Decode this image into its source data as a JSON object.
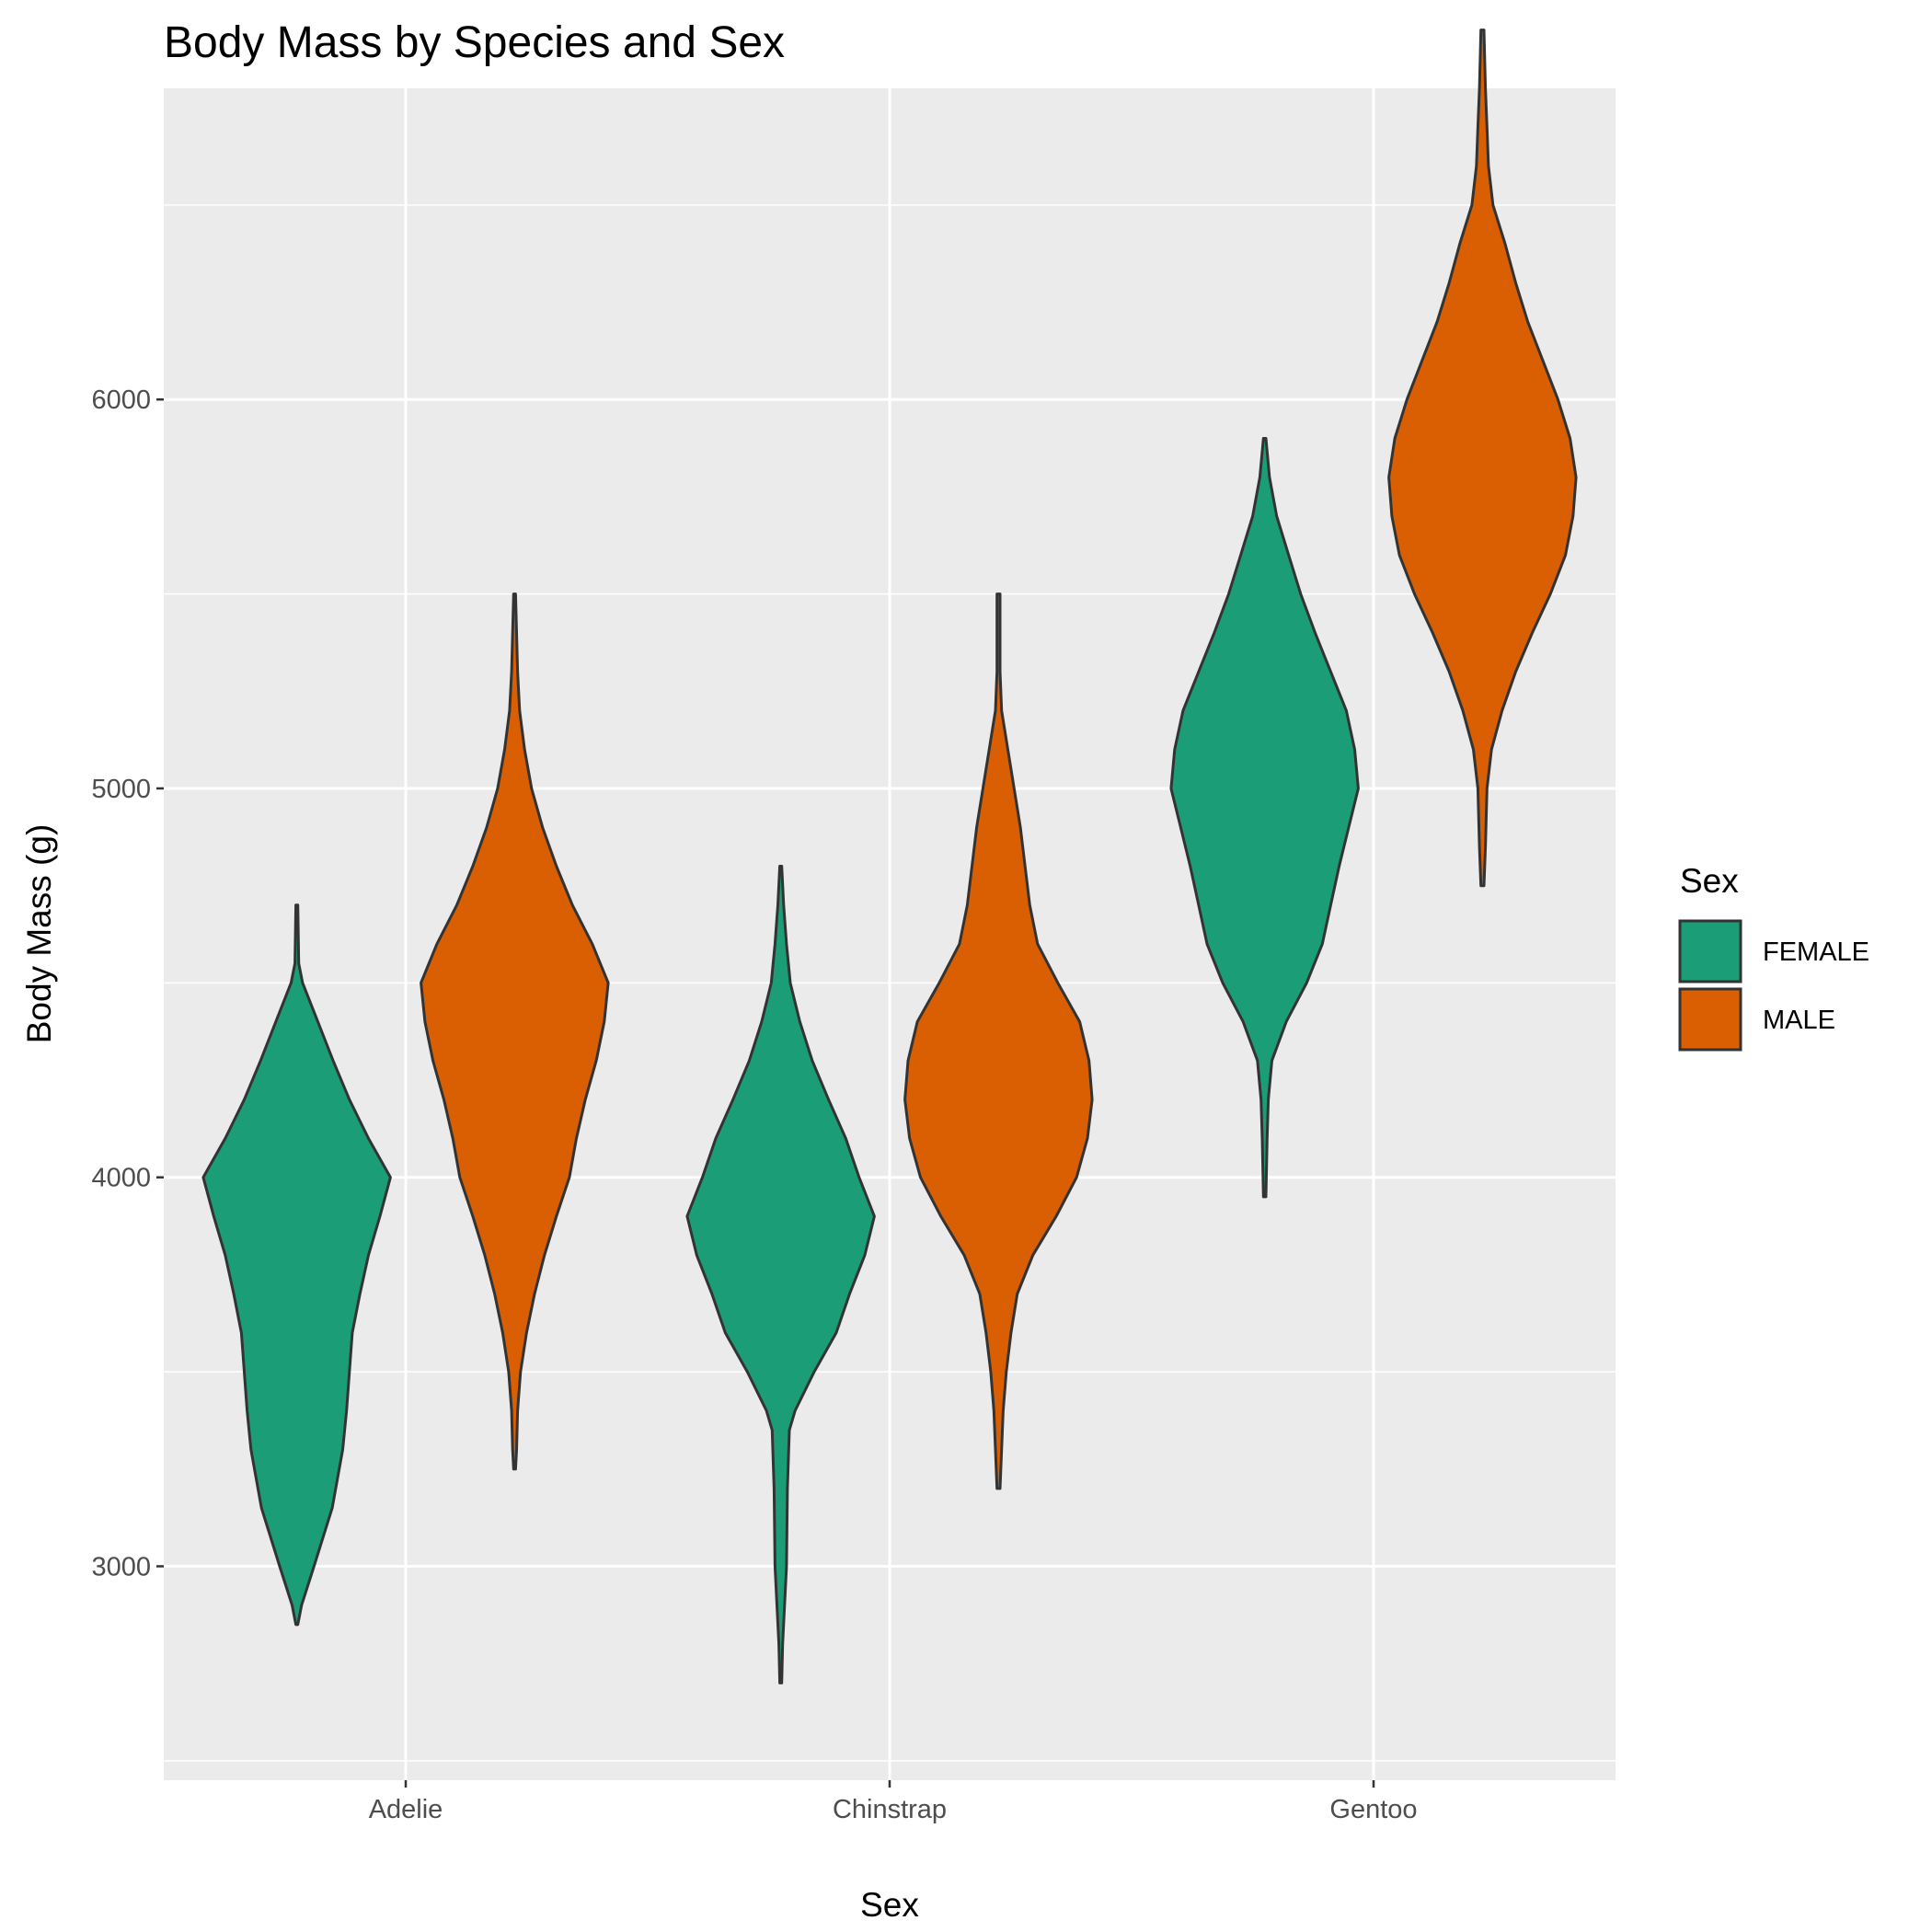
{
  "chart_data": {
    "type": "violin",
    "title": "Body Mass by Species and Sex",
    "xlabel": "Sex",
    "ylabel": "Body Mass (g)",
    "categories": [
      "Adelie",
      "Chinstrap",
      "Gentoo"
    ],
    "ylim": [
      2450,
      6800
    ],
    "yticks": [
      3000,
      4000,
      5000,
      6000
    ],
    "yticks_minor": [
      2500,
      3500,
      4500,
      5500,
      6500
    ],
    "grid": true,
    "legend": {
      "title": "Sex",
      "position": "right",
      "entries": [
        {
          "label": "FEMALE",
          "color": "#1b9e77"
        },
        {
          "label": "MALE",
          "color": "#d95f02"
        }
      ]
    },
    "series": [
      {
        "group": "FEMALE",
        "color": "#1b9e77",
        "violins": [
          {
            "category": "Adelie",
            "min": 2850,
            "max": 4700,
            "profile": [
              [
                2850,
                0.01
              ],
              [
                2900,
                0.05
              ],
              [
                3000,
                0.18
              ],
              [
                3150,
                0.37
              ],
              [
                3300,
                0.48
              ],
              [
                3400,
                0.52
              ],
              [
                3500,
                0.55
              ],
              [
                3600,
                0.58
              ],
              [
                3700,
                0.66
              ],
              [
                3800,
                0.75
              ],
              [
                3900,
                0.87
              ],
              [
                4000,
                0.98
              ],
              [
                4100,
                0.75
              ],
              [
                4200,
                0.55
              ],
              [
                4300,
                0.38
              ],
              [
                4400,
                0.22
              ],
              [
                4500,
                0.06
              ],
              [
                4550,
                0.02
              ],
              [
                4700,
                0.01
              ]
            ]
          },
          {
            "category": "Chinstrap",
            "min": 2700,
            "max": 4800,
            "profile": [
              [
                2700,
                0.01
              ],
              [
                2800,
                0.02
              ],
              [
                2900,
                0.04
              ],
              [
                3000,
                0.06
              ],
              [
                3200,
                0.07
              ],
              [
                3350,
                0.09
              ],
              [
                3400,
                0.15
              ],
              [
                3500,
                0.35
              ],
              [
                3600,
                0.58
              ],
              [
                3700,
                0.72
              ],
              [
                3800,
                0.88
              ],
              [
                3900,
                0.98
              ],
              [
                4000,
                0.82
              ],
              [
                4100,
                0.68
              ],
              [
                4200,
                0.5
              ],
              [
                4300,
                0.33
              ],
              [
                4400,
                0.2
              ],
              [
                4500,
                0.1
              ],
              [
                4600,
                0.06
              ],
              [
                4700,
                0.03
              ],
              [
                4800,
                0.01
              ]
            ]
          },
          {
            "category": "Gentoo",
            "min": 3950,
            "max": 5900,
            "profile": [
              [
                3950,
                0.01
              ],
              [
                4100,
                0.02
              ],
              [
                4200,
                0.03
              ],
              [
                4300,
                0.06
              ],
              [
                4400,
                0.18
              ],
              [
                4500,
                0.35
              ],
              [
                4600,
                0.48
              ],
              [
                4700,
                0.55
              ],
              [
                4800,
                0.62
              ],
              [
                4900,
                0.7
              ],
              [
                5000,
                0.78
              ],
              [
                5100,
                0.75
              ],
              [
                5200,
                0.68
              ],
              [
                5300,
                0.55
              ],
              [
                5400,
                0.42
              ],
              [
                5500,
                0.3
              ],
              [
                5600,
                0.2
              ],
              [
                5700,
                0.1
              ],
              [
                5800,
                0.04
              ],
              [
                5900,
                0.01
              ]
            ]
          }
        ]
      },
      {
        "group": "MALE",
        "color": "#d95f02",
        "violins": [
          {
            "category": "Adelie",
            "min": 3250,
            "max": 5500,
            "profile": [
              [
                3250,
                0.01
              ],
              [
                3300,
                0.02
              ],
              [
                3400,
                0.03
              ],
              [
                3500,
                0.06
              ],
              [
                3600,
                0.12
              ],
              [
                3700,
                0.2
              ],
              [
                3800,
                0.3
              ],
              [
                3900,
                0.42
              ],
              [
                4000,
                0.55
              ],
              [
                4100,
                0.62
              ],
              [
                4200,
                0.71
              ],
              [
                4300,
                0.82
              ],
              [
                4400,
                0.9
              ],
              [
                4500,
                0.94
              ],
              [
                4600,
                0.78
              ],
              [
                4700,
                0.58
              ],
              [
                4800,
                0.42
              ],
              [
                4900,
                0.28
              ],
              [
                5000,
                0.17
              ],
              [
                5100,
                0.1
              ],
              [
                5200,
                0.05
              ],
              [
                5300,
                0.03
              ],
              [
                5400,
                0.02
              ],
              [
                5500,
                0.01
              ]
            ]
          },
          {
            "category": "Chinstrap",
            "min": 3200,
            "max": 5500,
            "profile": [
              [
                3200,
                0.01
              ],
              [
                3300,
                0.02
              ],
              [
                3400,
                0.03
              ],
              [
                3500,
                0.05
              ],
              [
                3600,
                0.08
              ],
              [
                3700,
                0.12
              ],
              [
                3800,
                0.22
              ],
              [
                3900,
                0.37
              ],
              [
                4000,
                0.5
              ],
              [
                4100,
                0.57
              ],
              [
                4200,
                0.6
              ],
              [
                4300,
                0.58
              ],
              [
                4400,
                0.52
              ],
              [
                4500,
                0.38
              ],
              [
                4600,
                0.25
              ],
              [
                4700,
                0.2
              ],
              [
                4800,
                0.17
              ],
              [
                4900,
                0.14
              ],
              [
                5000,
                0.1
              ],
              [
                5100,
                0.06
              ],
              [
                5200,
                0.02
              ],
              [
                5300,
                0.01
              ],
              [
                5500,
                0.01
              ]
            ]
          },
          {
            "category": "Gentoo",
            "min": 4750,
            "max": 6950,
            "profile": [
              [
                4750,
                0.01
              ],
              [
                4850,
                0.02
              ],
              [
                5000,
                0.03
              ],
              [
                5100,
                0.06
              ],
              [
                5200,
                0.13
              ],
              [
                5300,
                0.22
              ],
              [
                5400,
                0.33
              ],
              [
                5500,
                0.45
              ],
              [
                5600,
                0.55
              ],
              [
                5700,
                0.6
              ],
              [
                5800,
                0.62
              ],
              [
                5900,
                0.58
              ],
              [
                6000,
                0.5
              ],
              [
                6100,
                0.4
              ],
              [
                6200,
                0.3
              ],
              [
                6300,
                0.22
              ],
              [
                6400,
                0.15
              ],
              [
                6500,
                0.07
              ],
              [
                6600,
                0.04
              ],
              [
                6700,
                0.03
              ],
              [
                6800,
                0.02
              ],
              [
                6950,
                0.01
              ]
            ]
          }
        ]
      }
    ]
  }
}
